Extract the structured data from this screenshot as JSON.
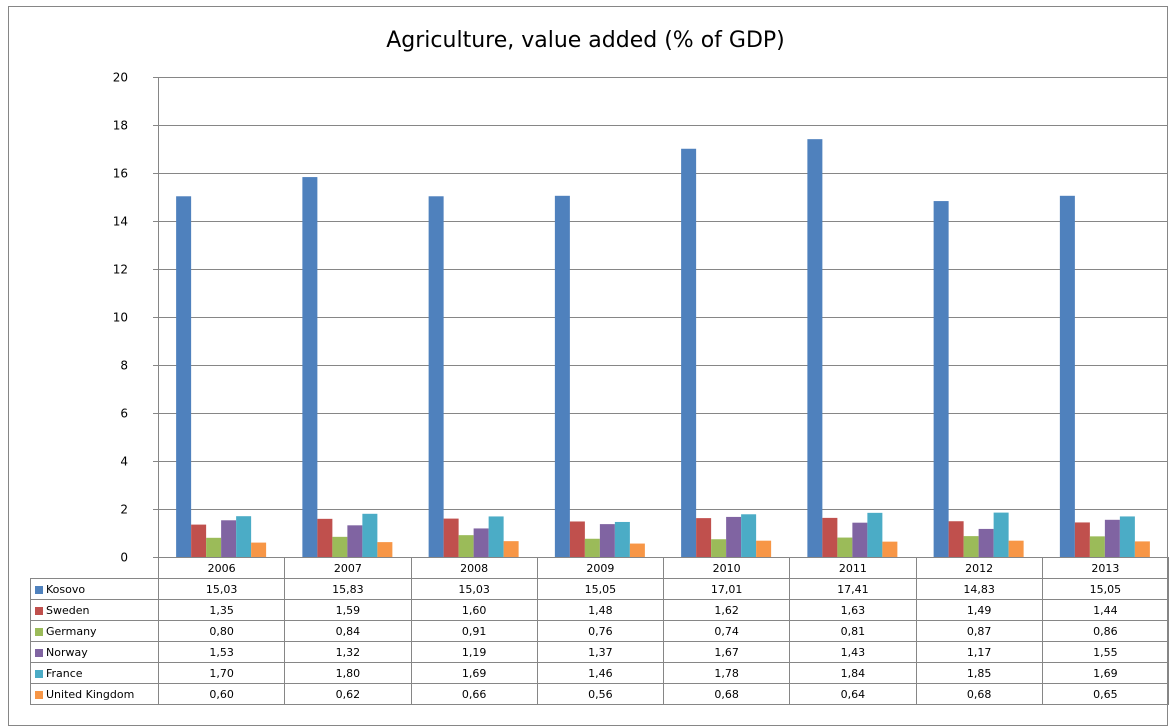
{
  "chart_data": {
    "type": "bar",
    "title": "Agriculture, value added (% of GDP)",
    "categories": [
      "2006",
      "2007",
      "2008",
      "2009",
      "2010",
      "2011",
      "2012",
      "2013"
    ],
    "ylim": [
      0,
      20
    ],
    "yticks": [
      0,
      2,
      4,
      6,
      8,
      10,
      12,
      14,
      16,
      18,
      20
    ],
    "grid": true,
    "legend": "data table",
    "series": [
      {
        "name": "Kosovo",
        "color": "#4F81BD",
        "values": [
          15.03,
          15.83,
          15.03,
          15.05,
          17.01,
          17.41,
          14.83,
          15.05
        ],
        "labels": [
          "15,03",
          "15,83",
          "15,03",
          "15,05",
          "17,01",
          "17,41",
          "14,83",
          "15,05"
        ]
      },
      {
        "name": "Sweden",
        "color": "#C0504D",
        "values": [
          1.35,
          1.59,
          1.6,
          1.48,
          1.62,
          1.63,
          1.49,
          1.44
        ],
        "labels": [
          "1,35",
          "1,59",
          "1,60",
          "1,48",
          "1,62",
          "1,63",
          "1,49",
          "1,44"
        ]
      },
      {
        "name": "Germany",
        "color": "#9BBB59",
        "values": [
          0.8,
          0.84,
          0.91,
          0.76,
          0.74,
          0.81,
          0.87,
          0.86
        ],
        "labels": [
          "0,80",
          "0,84",
          "0,91",
          "0,76",
          "0,74",
          "0,81",
          "0,87",
          "0,86"
        ]
      },
      {
        "name": "Norway",
        "color": "#8064A2",
        "values": [
          1.53,
          1.32,
          1.19,
          1.37,
          1.67,
          1.43,
          1.17,
          1.55
        ],
        "labels": [
          "1,53",
          "1,32",
          "1,19",
          "1,37",
          "1,67",
          "1,43",
          "1,17",
          "1,55"
        ]
      },
      {
        "name": "France",
        "color": "#4BACC6",
        "values": [
          1.7,
          1.8,
          1.69,
          1.46,
          1.78,
          1.84,
          1.85,
          1.69
        ],
        "labels": [
          "1,70",
          "1,80",
          "1,69",
          "1,46",
          "1,78",
          "1,84",
          "1,85",
          "1,69"
        ]
      },
      {
        "name": "United Kingdom",
        "color": "#F79646",
        "values": [
          0.6,
          0.62,
          0.66,
          0.56,
          0.68,
          0.64,
          0.68,
          0.65
        ],
        "labels": [
          "0,60",
          "0,62",
          "0,66",
          "0,56",
          "0,68",
          "0,64",
          "0,68",
          "0,65"
        ]
      }
    ]
  }
}
